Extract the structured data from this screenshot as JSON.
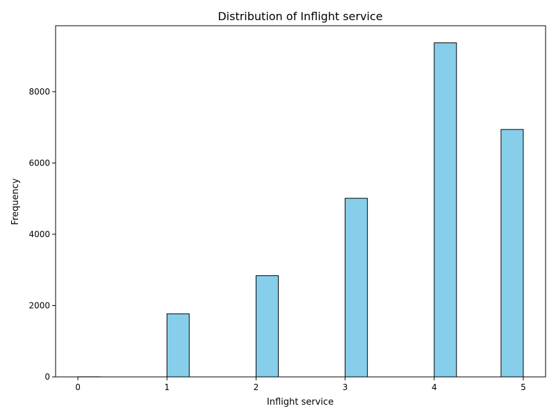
{
  "chart_data": {
    "type": "bar",
    "title": "Distribution of Inflight service",
    "xlabel": "Inflight service",
    "ylabel": "Frequency",
    "xlim": [
      -0.25,
      5.25
    ],
    "ylim": [
      0,
      9850
    ],
    "xticks": [
      0,
      1,
      2,
      3,
      4,
      5
    ],
    "yticks": [
      0,
      2000,
      4000,
      6000,
      8000
    ],
    "bin_width": 0.25,
    "bins": [
      {
        "start": 0.0,
        "value": 3
      },
      {
        "start": 1.0,
        "value": 1770
      },
      {
        "start": 2.0,
        "value": 2840
      },
      {
        "start": 3.0,
        "value": 5010
      },
      {
        "start": 4.0,
        "value": 9370
      },
      {
        "start": 4.75,
        "value": 6940
      }
    ],
    "grid": false,
    "legend": false,
    "colors": {
      "bar_fill": "#87ceeb",
      "bar_edge": "#000000"
    }
  }
}
